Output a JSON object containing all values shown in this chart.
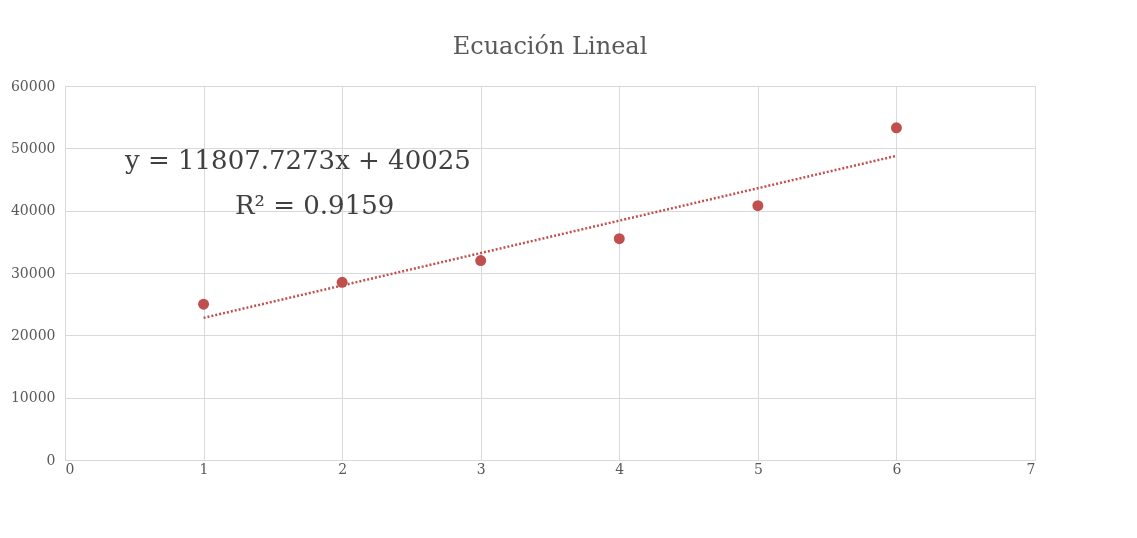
{
  "chart_data": {
    "type": "scatter",
    "title": "Ecuación Lineal",
    "x": [
      1,
      2,
      3,
      4,
      5,
      6
    ],
    "series": [
      {
        "color": "#c0504d",
        "marker": "circle",
        "values": [
          25000,
          28500,
          32000,
          35500,
          40800,
          53300
        ]
      },
      {
        "type": "line",
        "color": "#c0504d",
        "line_style": "dotted",
        "marker": "none",
        "x": [
          1,
          6
        ],
        "values": [
          22800,
          48800
        ]
      }
    ],
    "annotations": [
      "y = 11807.7273x + 40025",
      "R² = 0.9159"
    ],
    "xlim": [
      0,
      7
    ],
    "xticks": [
      0,
      1,
      2,
      3,
      4,
      5,
      6,
      7
    ],
    "ylim": [
      0,
      60000
    ],
    "yticks": [
      0,
      10000,
      20000,
      30000,
      40000,
      50000,
      60000
    ],
    "grid": true,
    "legend": false
  }
}
